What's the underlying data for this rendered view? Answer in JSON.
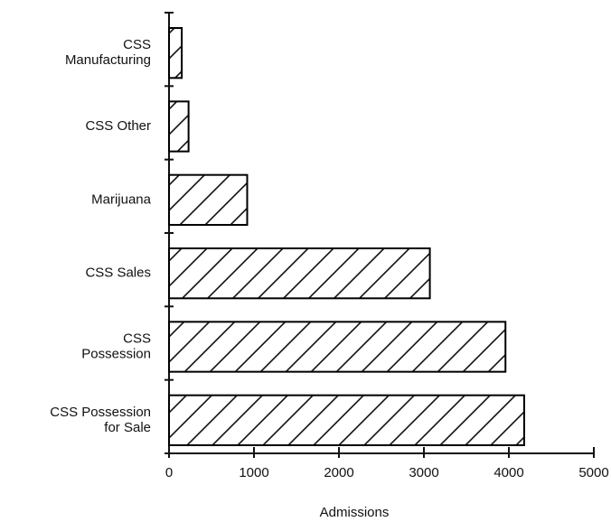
{
  "chart_data": {
    "type": "hbar",
    "categories": [
      "CSS\nManufacturing",
      "CSS Other",
      "Marijuana",
      "CSS Sales",
      "CSS\nPossession",
      "CSS Possession\nfor Sale"
    ],
    "values": [
      150,
      230,
      920,
      3070,
      3960,
      4180
    ],
    "xlim": [
      0,
      5000
    ],
    "xticks": [
      0,
      1000,
      2000,
      3000,
      4000,
      5000
    ],
    "xlabel": "Admissions",
    "color": "#000000",
    "hatch": true
  }
}
